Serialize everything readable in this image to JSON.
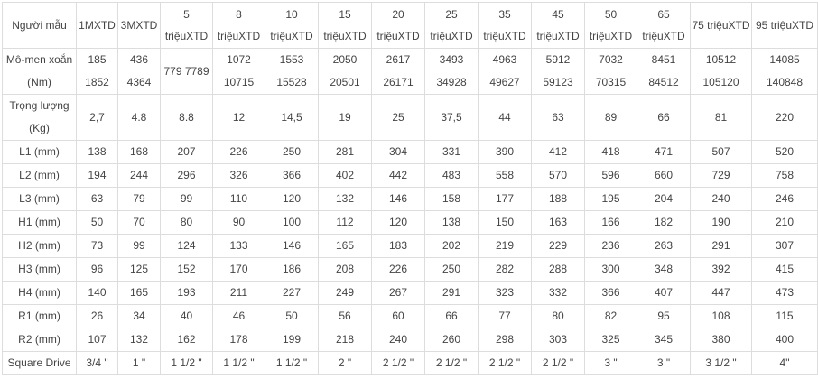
{
  "table": {
    "header": [
      "Người mẫu",
      "1MXTD",
      "3MXTD",
      "5 triệuXTD",
      "8 triệuXTD",
      "10 triệuXTD",
      "15 triệuXTD",
      "20 triệuXTD",
      "25 triệuXTD",
      "35 triệuXTD",
      "45 triệuXTD",
      "50 triệuXTD",
      "65 triệuXTD",
      "75 triệuXTD",
      "95 triệuXTD"
    ],
    "torque": {
      "label": "Mô-men xoắn (Nm)",
      "cells": [
        [
          "185",
          "1852"
        ],
        [
          "436",
          "4364"
        ],
        [
          "779 7789"
        ],
        [
          "1072",
          "10715"
        ],
        [
          "1553",
          "15528"
        ],
        [
          "2050",
          "20501"
        ],
        [
          "2617",
          "26171"
        ],
        [
          "3493",
          "34928"
        ],
        [
          "4963",
          "49627"
        ],
        [
          "5912",
          "59123"
        ],
        [
          "7032",
          "70315"
        ],
        [
          "8451",
          "84512"
        ],
        [
          "10512",
          "105120"
        ],
        [
          "14085",
          "140848"
        ]
      ]
    },
    "rows": [
      {
        "label": "Trọng lượng (Kg)",
        "values": [
          "2,7",
          "4.8",
          "8.8",
          "12",
          "14,5",
          "19",
          "25",
          "37,5",
          "44",
          "63",
          "89",
          "66",
          "81",
          "220"
        ]
      },
      {
        "label": "L1 (mm)",
        "values": [
          "138",
          "168",
          "207",
          "226",
          "250",
          "281",
          "304",
          "331",
          "390",
          "412",
          "418",
          "471",
          "507",
          "520"
        ]
      },
      {
        "label": "L2 (mm)",
        "values": [
          "194",
          "244",
          "296",
          "326",
          "366",
          "402",
          "442",
          "483",
          "558",
          "570",
          "596",
          "660",
          "729",
          "758"
        ]
      },
      {
        "label": "L3 (mm)",
        "values": [
          "63",
          "79",
          "99",
          "110",
          "120",
          "132",
          "146",
          "158",
          "177",
          "188",
          "195",
          "204",
          "240",
          "246"
        ]
      },
      {
        "label": "H1 (mm)",
        "values": [
          "50",
          "70",
          "80",
          "90",
          "100",
          "112",
          "120",
          "138",
          "150",
          "163",
          "166",
          "182",
          "190",
          "210"
        ]
      },
      {
        "label": "H2 (mm)",
        "values": [
          "73",
          "99",
          "124",
          "133",
          "146",
          "165",
          "183",
          "202",
          "219",
          "229",
          "236",
          "263",
          "291",
          "307"
        ]
      },
      {
        "label": "H3 (mm)",
        "values": [
          "96",
          "125",
          "152",
          "170",
          "186",
          "208",
          "226",
          "250",
          "282",
          "288",
          "300",
          "348",
          "392",
          "415"
        ]
      },
      {
        "label": "H4 (mm)",
        "values": [
          "140",
          "165",
          "193",
          "211",
          "227",
          "249",
          "267",
          "291",
          "323",
          "332",
          "366",
          "407",
          "447",
          "473"
        ]
      },
      {
        "label": "R1 (mm)",
        "values": [
          "26",
          "34",
          "40",
          "46",
          "50",
          "56",
          "60",
          "66",
          "77",
          "80",
          "82",
          "95",
          "108",
          "115"
        ]
      },
      {
        "label": "R2 (mm)",
        "values": [
          "107",
          "132",
          "162",
          "178",
          "199",
          "218",
          "240",
          "260",
          "298",
          "303",
          "325",
          "345",
          "380",
          "400"
        ]
      },
      {
        "label": "Square Drive",
        "values": [
          "3/4 \"",
          "1 \"",
          "1 1/2 \"",
          "1 1/2 \"",
          "1 1/2 \"",
          "2 \"",
          "2 1/2 \"",
          "2 1/2 \"",
          "2 1/2 \"",
          "2 1/2 \"",
          "3 \"",
          "3 \"",
          "3 1/2 \"",
          "4\""
        ]
      }
    ]
  }
}
